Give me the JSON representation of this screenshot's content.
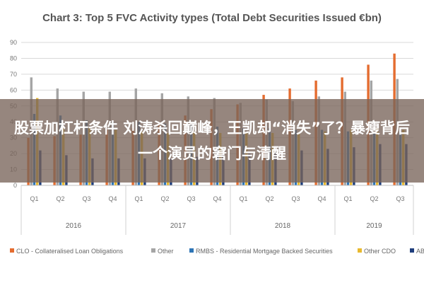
{
  "chart_data": {
    "type": "bar",
    "title": "Chart 3: Top 5 FVC Activity types (Total Debt Securities Issued €bn)",
    "xlabel": "",
    "ylabel": "",
    "ylim": [
      0,
      90
    ],
    "yticks": [
      0,
      10,
      20,
      30,
      40,
      50,
      60,
      70,
      80,
      90
    ],
    "grid": true,
    "legend_position": "bottom",
    "categories": [
      "Q1",
      "Q2",
      "Q3",
      "Q4",
      "Q1",
      "Q2",
      "Q3",
      "Q4",
      "Q1",
      "Q2",
      "Q3",
      "Q4",
      "Q1",
      "Q2",
      "Q3"
    ],
    "year_groups": [
      {
        "label": "2016",
        "count": 4
      },
      {
        "label": "2017",
        "count": 4
      },
      {
        "label": "2018",
        "count": 4
      },
      {
        "label": "2019",
        "count": 3
      }
    ],
    "series": [
      {
        "name": "CLO - Collateralised Loan Obligations",
        "color": "#e46c2f",
        "values": [
          30,
          31,
          32,
          35,
          36,
          40,
          44,
          48,
          51,
          57,
          61,
          66,
          68,
          76,
          83
        ]
      },
      {
        "name": "Other",
        "color": "#a5a5a5",
        "values": [
          68,
          61,
          59,
          59,
          61,
          58,
          56,
          55,
          52,
          54,
          53,
          56,
          59,
          66,
          67
        ]
      },
      {
        "name": "RMBS - Residential Mortgage Backed Securities",
        "color": "#2e75b6",
        "values": [
          45,
          44,
          41,
          40,
          40,
          39,
          38,
          37,
          36,
          36,
          35,
          35,
          34,
          33,
          33
        ]
      },
      {
        "name": "Other CDO",
        "color": "#e8b92e",
        "values": [
          55,
          37,
          36,
          35,
          34,
          33,
          34,
          33,
          33,
          33,
          33,
          34,
          35,
          36,
          35
        ]
      },
      {
        "name": "ABCP",
        "color": "#1f3e7c",
        "values": [
          22,
          19,
          17,
          17,
          17,
          17,
          18,
          19,
          20,
          21,
          22,
          23,
          24,
          26,
          26
        ]
      }
    ]
  },
  "overlay": {
    "text": "股票加杠杆条件 刘涛杀回巅峰，王凯却“消失”了？暴瘦背后一个演员的窘门与清醒"
  }
}
